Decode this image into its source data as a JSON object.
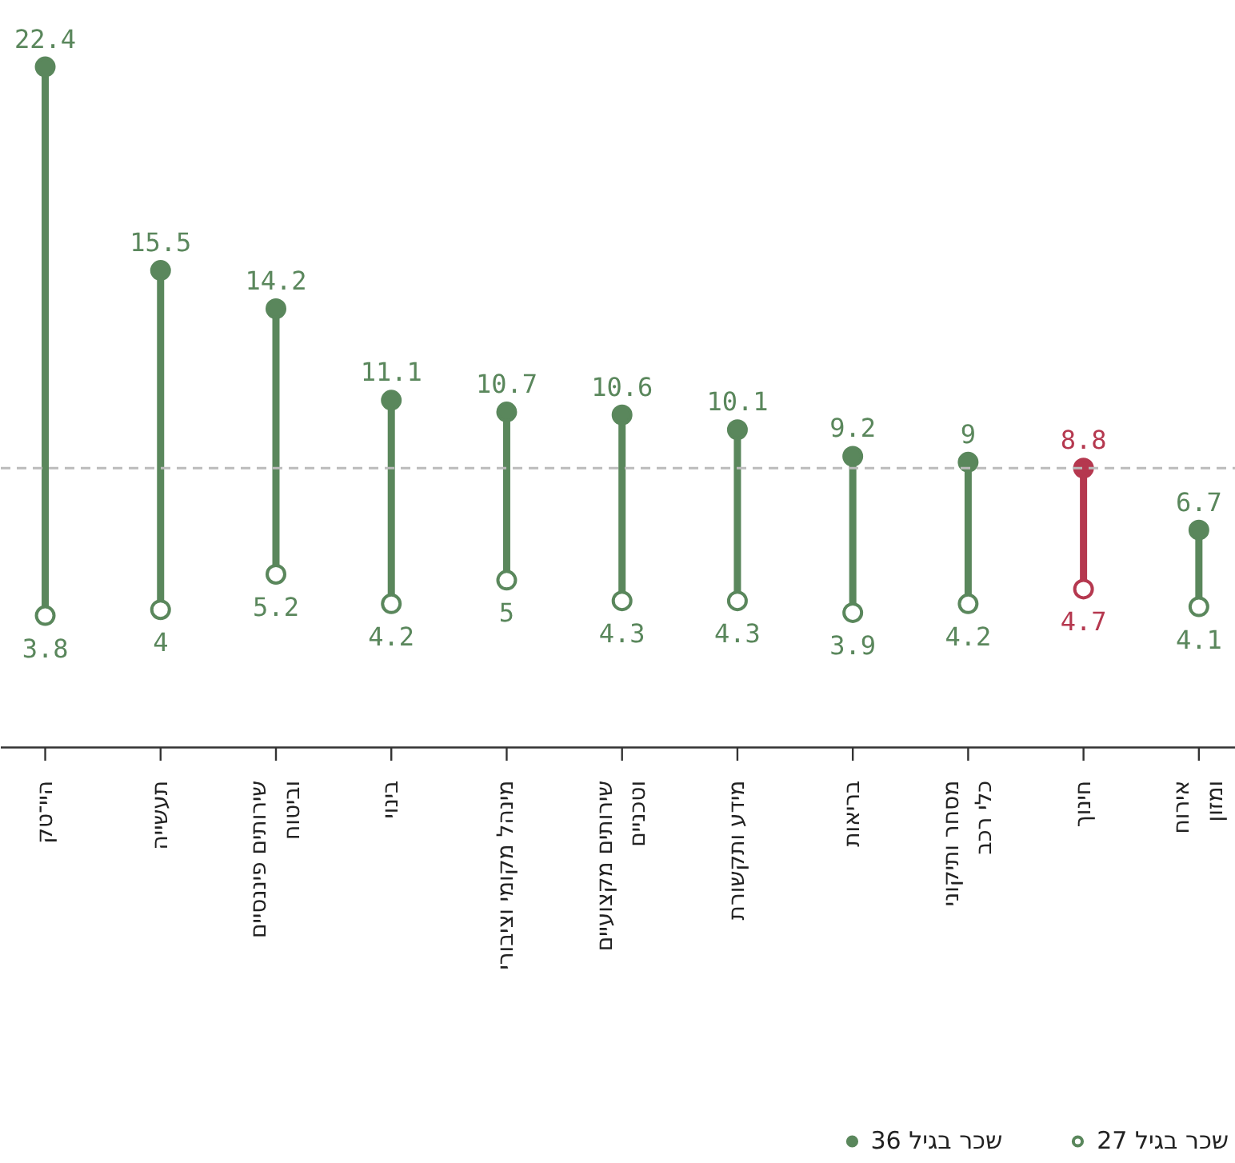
{
  "chart_data": {
    "type": "lollipop",
    "categories": [
      "היי־טק",
      "תעשייה",
      "שירותים פיננסיים\nוביטוח",
      "בינוי",
      "מינהל מקומי וציבורי",
      "שירותים מקצועיים\nוטכניים",
      "מידע ותקשורת",
      "בריאות",
      "מסחר ותיקוני\nכלי רכב",
      "חינוך",
      "אירוח\nומזון"
    ],
    "series": [
      {
        "name": "שכר בגיל 36",
        "marker": "circle",
        "colors": [
          "#5a875c",
          "#5a875c",
          "#5a875c",
          "#5a875c",
          "#5a875c",
          "#5a875c",
          "#5a875c",
          "#5a875c",
          "#5a875c",
          "#b5384f",
          "#5a875c"
        ],
        "values": [
          22.4,
          15.5,
          14.2,
          11.1,
          10.7,
          10.6,
          10.1,
          9.2,
          9,
          8.8,
          6.7
        ]
      },
      {
        "name": "שכר בגיל 27",
        "marker": "circle_open",
        "colors": [
          "#5a875c",
          "#5a875c",
          "#5a875c",
          "#5a875c",
          "#5a875c",
          "#5a875c",
          "#5a875c",
          "#5a875c",
          "#5a875c",
          "#b5384f",
          "#5a875c"
        ],
        "values": [
          3.8,
          4,
          5.2,
          4.2,
          5,
          4.3,
          4.3,
          3.9,
          4.2,
          4.7,
          4.1
        ]
      }
    ],
    "tick_labels": "x",
    "data_labels": true,
    "legend": "bottom right",
    "ref_lines": [
      {
        "axis": "y",
        "value": 8.8,
        "color": "#bbbbbb",
        "line_style": "dashed"
      }
    ]
  }
}
